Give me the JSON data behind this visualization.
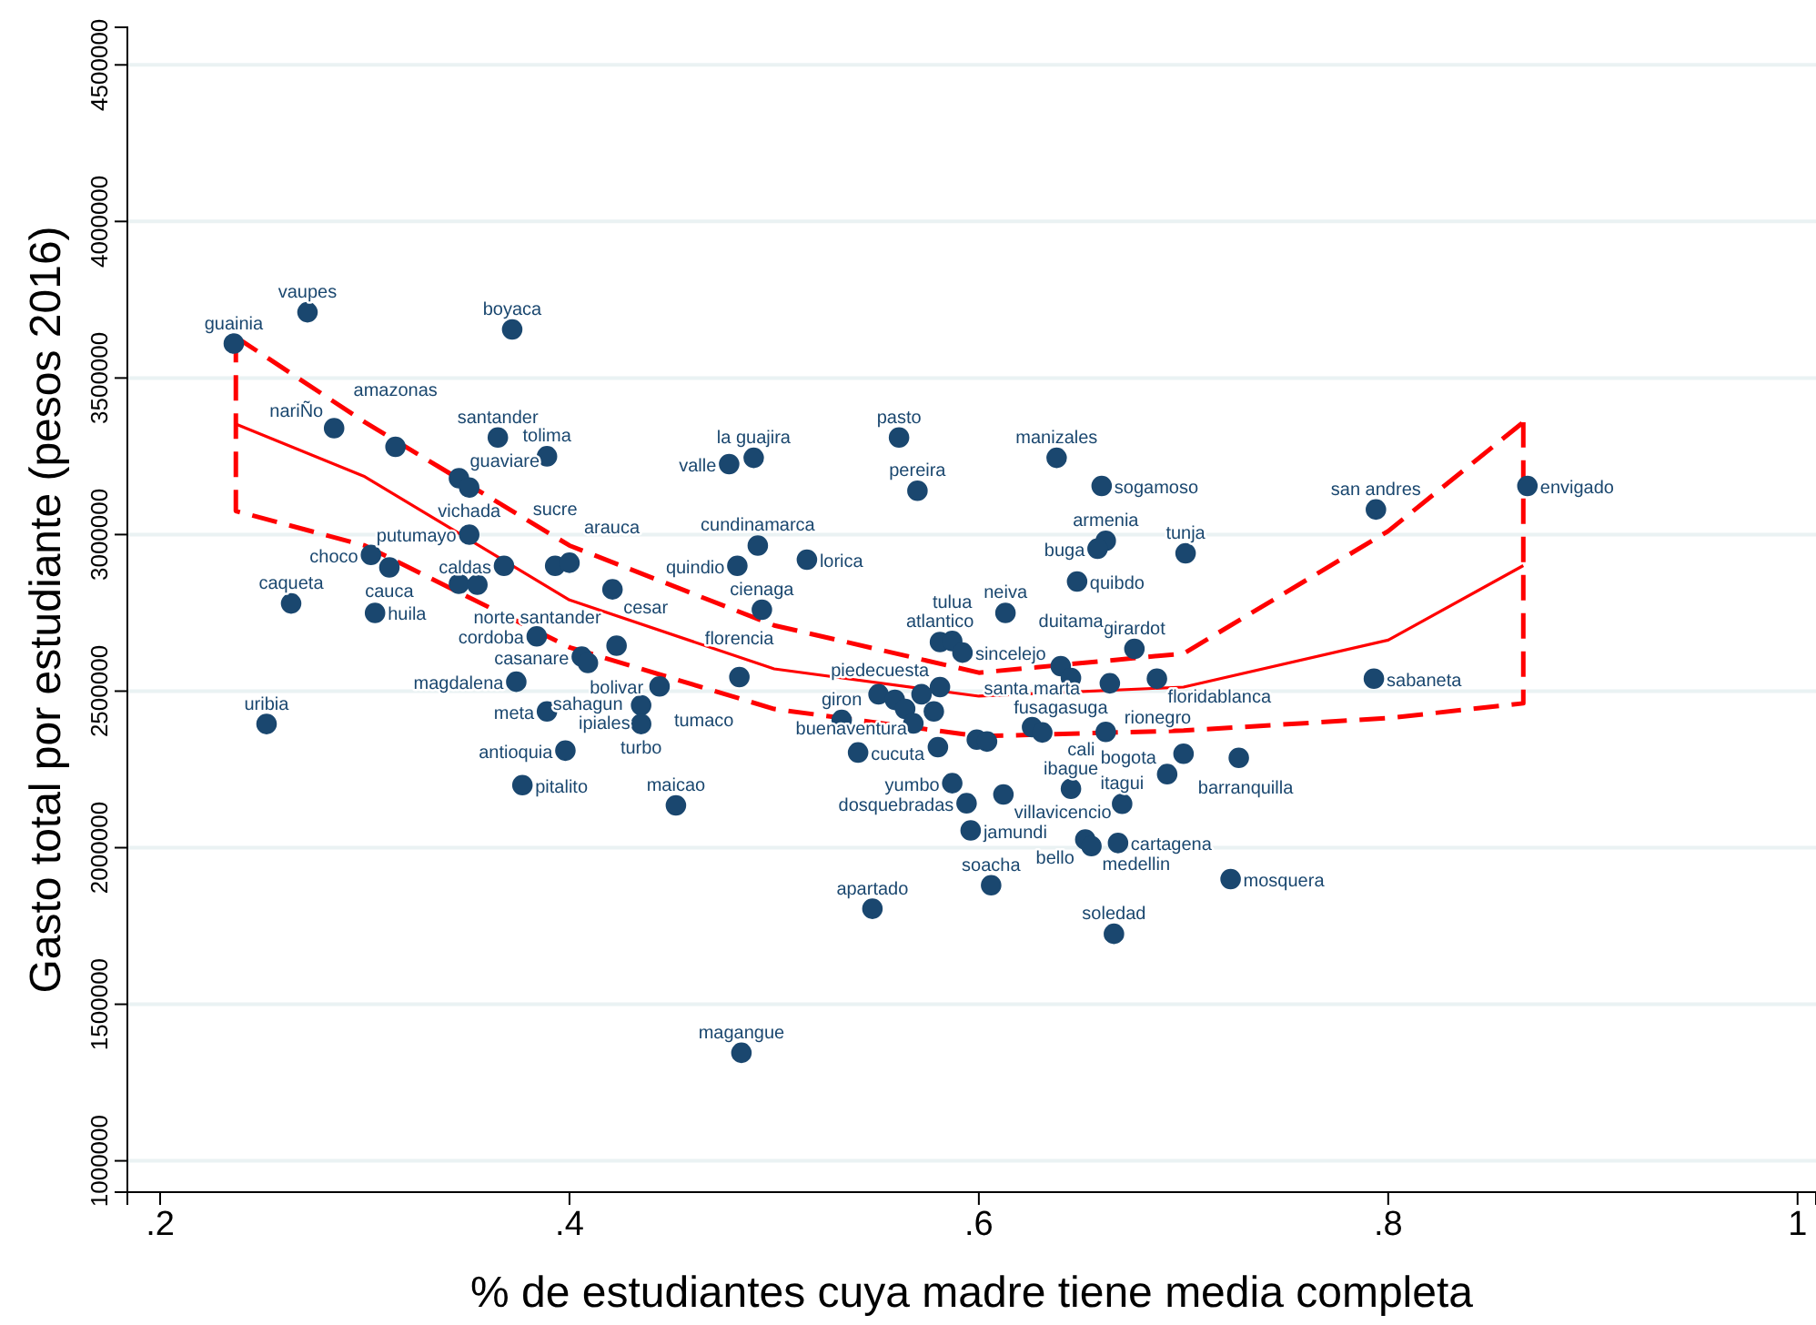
{
  "chart_data": {
    "type": "scatter",
    "xlabel": "% de estudiantes cuya madre tiene media completa",
    "ylabel": "Gasto total por estudiante (pesos 2016)",
    "xlim": [
      0.184,
      1.009
    ],
    "ylim": [
      900000,
      4620000
    ],
    "xticks": [
      {
        "value": 0.2,
        "label": ".2"
      },
      {
        "value": 0.4,
        "label": ".4"
      },
      {
        "value": 0.6,
        "label": ".6"
      },
      {
        "value": 0.8,
        "label": ".8"
      },
      1
    ],
    "yticks": [
      1000000,
      1500000,
      2000000,
      2500000,
      3000000,
      3500000,
      4000000,
      4500000
    ],
    "grid": "y",
    "marker": "circle",
    "series": [
      {
        "color": "#1a476f",
        "x": [
          0.236,
          0.272,
          0.372,
          0.285,
          0.315,
          0.365,
          0.389,
          0.346,
          0.351,
          0.351,
          0.303,
          0.312,
          0.264,
          0.305,
          0.368,
          0.393,
          0.4,
          0.346,
          0.355,
          0.421,
          0.384,
          0.423,
          0.406,
          0.409,
          0.374,
          0.444,
          0.435,
          0.435,
          0.389,
          0.252,
          0.398,
          0.377,
          0.452,
          0.483,
          0.492,
          0.482,
          0.516,
          0.494,
          0.478,
          0.49,
          0.561,
          0.57,
          0.638,
          0.66,
          0.662,
          0.658,
          0.701,
          0.648,
          0.613,
          0.581,
          0.587,
          0.592,
          0.676,
          0.64,
          0.645,
          0.664,
          0.687,
          0.793,
          0.794,
          0.868,
          0.533,
          0.541,
          0.587,
          0.594,
          0.596,
          0.612,
          0.645,
          0.67,
          0.652,
          0.655,
          0.668,
          0.606,
          0.548,
          0.666,
          0.484,
          0.723,
          0.692,
          0.7,
          0.727,
          0.662,
          0.626,
          0.581,
          0.572,
          0.551,
          0.559,
          0.564,
          0.568,
          0.578,
          0.58,
          0.599,
          0.604,
          0.631
        ],
        "values": [
          3610000,
          3710000,
          3655000,
          3340000,
          3280000,
          3310000,
          3250000,
          3180000,
          3150000,
          3000000,
          2935000,
          2895000,
          2780000,
          2750000,
          2900000,
          2900000,
          2910000,
          2843000,
          2840000,
          2825000,
          2675000,
          2645000,
          2610000,
          2590000,
          2530000,
          2515000,
          2455000,
          2395000,
          2435000,
          2395000,
          2310000,
          2200000,
          2135000,
          2545000,
          2965000,
          2900000,
          2920000,
          2760000,
          3225000,
          3245000,
          3310000,
          3140000,
          3245000,
          3155000,
          2980000,
          2955000,
          2940000,
          2850000,
          2750000,
          2657000,
          2660000,
          2623000,
          2635000,
          2580000,
          2542000,
          2525000,
          2540000,
          2540000,
          3080000,
          3155000,
          2408000,
          2304000,
          2206000,
          2142000,
          2055000,
          2170000,
          2188000,
          2140000,
          2026000,
          2005000,
          2015000,
          1880000,
          1805000,
          1725000,
          1345000,
          1900000,
          2235000,
          2300000,
          2287000,
          2370000,
          2385000,
          2513000,
          2490000,
          2490000,
          2472000,
          2443000,
          2397000,
          2435000,
          2321000,
          2345000,
          2339000,
          2368000
        ]
      },
      {
        "type": "line",
        "marker": "none",
        "color": "#ff0000",
        "line_style": "solid",
        "x": [
          0.237,
          0.3,
          0.4,
          0.5,
          0.6,
          0.7,
          0.8,
          0.866
        ],
        "values": [
          3353000,
          3185000,
          2791000,
          2571000,
          2484000,
          2513000,
          2663000,
          2901000
        ]
      },
      {
        "type": "line",
        "marker": "none",
        "color": "#ff0000",
        "line_style": "dashed",
        "x": [
          0.237,
          0.3,
          0.4,
          0.5,
          0.6,
          0.7,
          0.8,
          0.866
        ],
        "values": [
          3631000,
          3359000,
          2965000,
          2710000,
          2559000,
          2620000,
          3011000,
          3359000
        ]
      },
      {
        "type": "line",
        "marker": "none",
        "color": "#ff0000",
        "line_style": "dashed",
        "x": [
          0.237,
          0.237,
          0.3,
          0.4,
          0.5,
          0.6,
          0.7,
          0.8,
          0.866,
          0.866
        ],
        "values": [
          3631000,
          3075000,
          2965000,
          2640000,
          2443000,
          2356000,
          2374000,
          2414000,
          2461000,
          3359000
        ]
      }
    ],
    "annotations": [
      {
        "text": "guainia",
        "x": 0.236,
        "y": 3610000
      },
      {
        "text": "vaupes",
        "x": 0.272,
        "y": 3710000
      },
      {
        "text": "boyaca",
        "x": 0.372,
        "y": 3655000
      },
      {
        "text": "nariÑo",
        "x": 0.285,
        "y": 3340000
      },
      {
        "text": "amazonas",
        "x": 0.315,
        "y": 3280000
      },
      {
        "text": "santander",
        "x": 0.365,
        "y": 3310000
      },
      {
        "text": "tolima",
        "x": 0.389,
        "y": 3250000
      },
      {
        "text": "guaviare",
        "x": 0.346,
        "y": 3180000
      },
      {
        "text": "vichada",
        "x": 0.351,
        "y": 3150000
      },
      {
        "text": "putumayo",
        "x": 0.351,
        "y": 3000000
      },
      {
        "text": "choco",
        "x": 0.303,
        "y": 2935000
      },
      {
        "text": "cauca",
        "x": 0.312,
        "y": 2895000
      },
      {
        "text": "caqueta",
        "x": 0.264,
        "y": 2780000
      },
      {
        "text": "huila",
        "x": 0.305,
        "y": 2750000
      },
      {
        "text": "caldas",
        "x": 0.368,
        "y": 2900000
      },
      {
        "text": "sucre",
        "x": 0.393,
        "y": 2900000
      },
      {
        "text": "arauca",
        "x": 0.4,
        "y": 2910000
      },
      {
        "text": "norte santander",
        "x": 0.346,
        "y": 2843000
      },
      {
        "text": "cesar",
        "x": 0.421,
        "y": 2825000
      },
      {
        "text": "cordoba",
        "x": 0.384,
        "y": 2675000
      },
      {
        "text": "bolivar",
        "x": 0.423,
        "y": 2645000
      },
      {
        "text": "casanare",
        "x": 0.406,
        "y": 2610000
      },
      {
        "text": "sahagun",
        "x": 0.409,
        "y": 2590000
      },
      {
        "text": "magdalena",
        "x": 0.374,
        "y": 2530000
      },
      {
        "text": "tumaco",
        "x": 0.444,
        "y": 2515000
      },
      {
        "text": "ipiales",
        "x": 0.435,
        "y": 2455000
      },
      {
        "text": "turbo",
        "x": 0.435,
        "y": 2395000
      },
      {
        "text": "meta",
        "x": 0.389,
        "y": 2435000
      },
      {
        "text": "uribia",
        "x": 0.252,
        "y": 2395000
      },
      {
        "text": "antioquia",
        "x": 0.398,
        "y": 2310000
      },
      {
        "text": "pitalito",
        "x": 0.377,
        "y": 2200000
      },
      {
        "text": "maicao",
        "x": 0.452,
        "y": 2135000
      },
      {
        "text": "florencia",
        "x": 0.483,
        "y": 2545000
      },
      {
        "text": "cundinamarca",
        "x": 0.492,
        "y": 2965000
      },
      {
        "text": "quindio",
        "x": 0.482,
        "y": 2900000
      },
      {
        "text": "lorica",
        "x": 0.516,
        "y": 2920000
      },
      {
        "text": "cienaga",
        "x": 0.494,
        "y": 2760000
      },
      {
        "text": "valle",
        "x": 0.478,
        "y": 3225000
      },
      {
        "text": "la guajira",
        "x": 0.49,
        "y": 3245000
      },
      {
        "text": "pasto",
        "x": 0.561,
        "y": 3310000
      },
      {
        "text": "pereira",
        "x": 0.57,
        "y": 3140000
      },
      {
        "text": "manizales",
        "x": 0.638,
        "y": 3245000
      },
      {
        "text": "sogamoso",
        "x": 0.66,
        "y": 3155000
      },
      {
        "text": "armenia",
        "x": 0.662,
        "y": 2980000
      },
      {
        "text": "buga",
        "x": 0.658,
        "y": 2955000
      },
      {
        "text": "tunja",
        "x": 0.701,
        "y": 2940000
      },
      {
        "text": "quibdo",
        "x": 0.648,
        "y": 2850000
      },
      {
        "text": "neiva",
        "x": 0.613,
        "y": 2750000
      },
      {
        "text": "atlantico",
        "x": 0.581,
        "y": 2657000
      },
      {
        "text": "tulua",
        "x": 0.587,
        "y": 2660000
      },
      {
        "text": "sincelejo",
        "x": 0.592,
        "y": 2623000
      },
      {
        "text": "girardot",
        "x": 0.676,
        "y": 2635000
      },
      {
        "text": "fusagasuga",
        "x": 0.64,
        "y": 2580000
      },
      {
        "text": "duitama",
        "x": 0.645,
        "y": 2542000
      },
      {
        "text": "rionegro",
        "x": 0.664,
        "y": 2525000
      },
      {
        "text": "floridablanca",
        "x": 0.687,
        "y": 2540000
      },
      {
        "text": "sabaneta",
        "x": 0.793,
        "y": 2540000
      },
      {
        "text": "san andres",
        "x": 0.794,
        "y": 3080000
      },
      {
        "text": "envigado",
        "x": 0.868,
        "y": 3155000
      },
      {
        "text": "giron",
        "x": 0.533,
        "y": 2408000
      },
      {
        "text": "cucuta",
        "x": 0.541,
        "y": 2304000
      },
      {
        "text": "yumbo",
        "x": 0.587,
        "y": 2206000
      },
      {
        "text": "dosquebradas",
        "x": 0.594,
        "y": 2142000
      },
      {
        "text": "jamundi",
        "x": 0.596,
        "y": 2055000
      },
      {
        "text": "villavicencio",
        "x": 0.612,
        "y": 2170000
      },
      {
        "text": "ibague",
        "x": 0.645,
        "y": 2188000
      },
      {
        "text": "itagui",
        "x": 0.67,
        "y": 2140000
      },
      {
        "text": "bello",
        "x": 0.652,
        "y": 2026000
      },
      {
        "text": "medellin",
        "x": 0.655,
        "y": 2005000
      },
      {
        "text": "cartagena",
        "x": 0.668,
        "y": 2015000
      },
      {
        "text": "soacha",
        "x": 0.606,
        "y": 1880000
      },
      {
        "text": "apartado",
        "x": 0.548,
        "y": 1805000
      },
      {
        "text": "soledad",
        "x": 0.666,
        "y": 1725000
      },
      {
        "text": "magangue",
        "x": 0.484,
        "y": 1345000
      },
      {
        "text": "mosquera",
        "x": 0.723,
        "y": 1900000
      },
      {
        "text": "bogota",
        "x": 0.692,
        "y": 2235000
      },
      {
        "text": "barranquilla",
        "x": 0.7,
        "y": 2300000
      },
      {
        "text": "cali",
        "x": 0.662,
        "y": 2370000
      },
      {
        "text": "santa marta",
        "x": 0.626,
        "y": 2385000
      },
      {
        "text": "piedecuesta",
        "x": 0.581,
        "y": 2513000
      },
      {
        "text": "buenaventura",
        "x": 0.572,
        "y": 2490000
      }
    ]
  }
}
